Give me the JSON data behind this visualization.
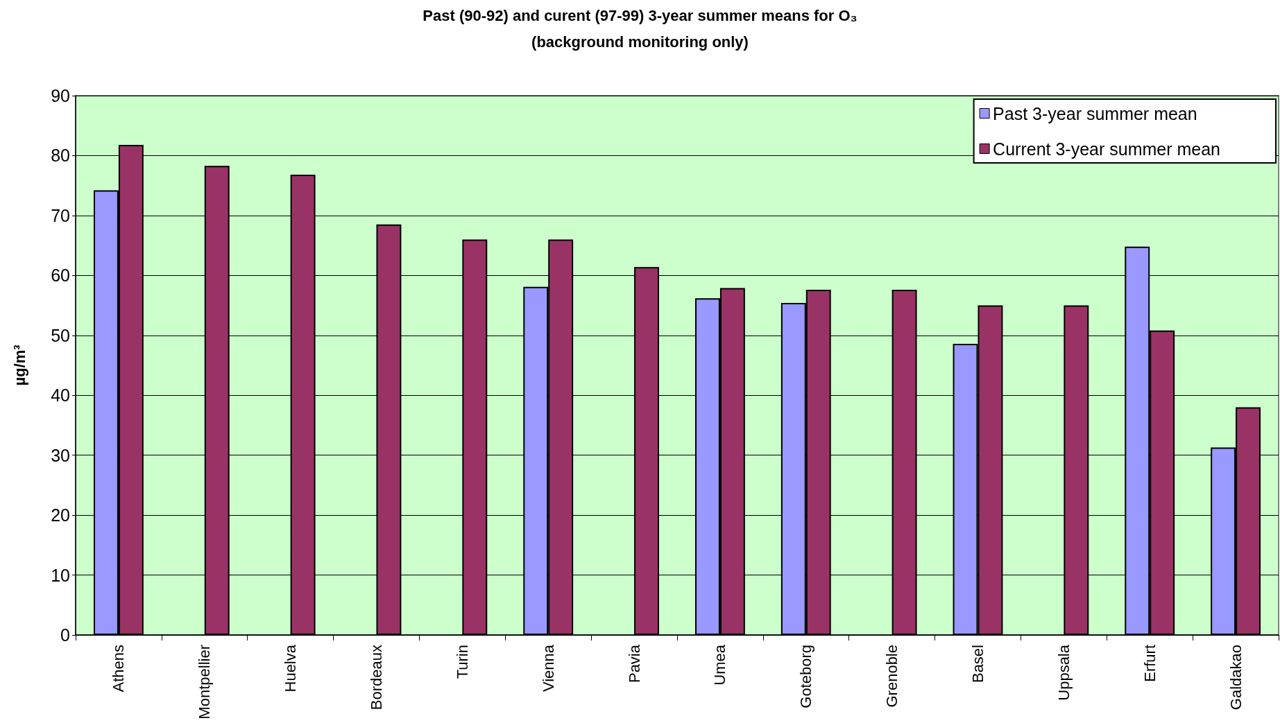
{
  "chart_data": {
    "type": "bar",
    "title": "Past (90-92) and curent (97-99) 3-year summer means for O₃",
    "subtitle": "(background monitoring only)",
    "ylabel": "µg/m³",
    "categories": [
      "Athens",
      "Montpellier",
      "Huelva",
      "Bordeaux",
      "Turin",
      "Vienna",
      "Pavia",
      "Umea",
      "Goteborg",
      "Grenoble",
      "Basel",
      "Uppsala",
      "Erfurt",
      "Galdakao"
    ],
    "series": [
      {
        "name": "Past 3-year summer mean",
        "color": "#9999ff",
        "values": [
          74.2,
          null,
          null,
          null,
          null,
          58.1,
          null,
          56.2,
          55.4,
          null,
          48.6,
          null,
          64.8,
          31.3
        ]
      },
      {
        "name": "Current 3-year summer mean",
        "color": "#993366",
        "values": [
          81.8,
          78.3,
          76.8,
          68.5,
          66.0,
          66.0,
          61.4,
          57.9,
          57.6,
          57.6,
          55.0,
          55.0,
          50.8,
          38.0
        ]
      }
    ],
    "ylim": [
      0,
      90
    ],
    "yticks": [
      0,
      10,
      20,
      30,
      40,
      50,
      60,
      70,
      80,
      90
    ],
    "grid": "y",
    "legend": "top right"
  }
}
